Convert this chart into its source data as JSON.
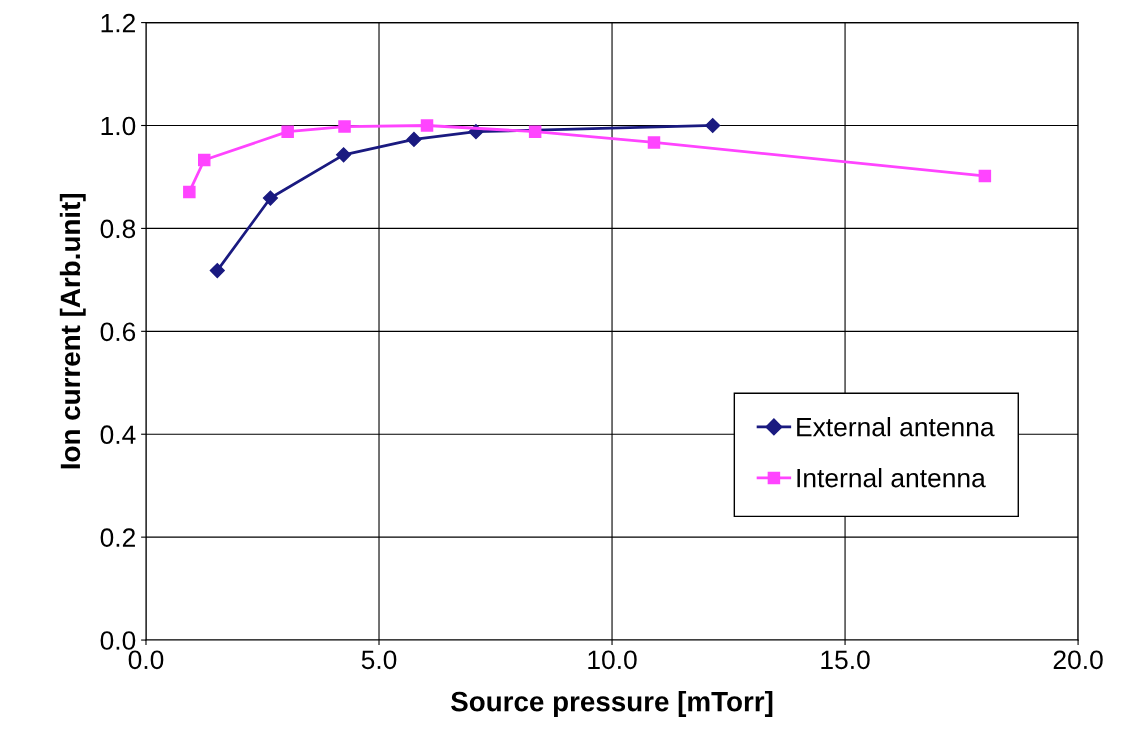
{
  "chart_data": {
    "type": "line",
    "xlabel": "Source pressure [mTorr]",
    "ylabel": "Ion current [Arb.unit]",
    "xlim": [
      0,
      20
    ],
    "xticks": [
      {
        "value": 0,
        "label": "0.0"
      },
      {
        "value": 5,
        "label": "5.0"
      },
      {
        "value": 10,
        "label": "10.0"
      },
      {
        "value": 15,
        "label": "15.0"
      },
      {
        "value": 20,
        "label": "20.0"
      }
    ],
    "ylim": [
      0,
      1.2
    ],
    "yticks": [
      {
        "value": 0,
        "label": "0.0"
      },
      {
        "value": 0.2,
        "label": "0.2"
      },
      {
        "value": 0.4,
        "label": "0.4"
      },
      {
        "value": 0.6,
        "label": "0.6"
      },
      {
        "value": 0.8,
        "label": "0.8"
      },
      {
        "value": 1.0,
        "label": "1.0"
      },
      {
        "value": 1.2,
        "label": "1.2"
      }
    ],
    "grid": true,
    "legend": "right",
    "series": [
      {
        "name": "External antenna",
        "color": "#1a1a80",
        "marker": "diamond",
        "x": [
          1.53,
          2.67,
          4.24,
          5.75,
          7.08,
          12.16
        ],
        "values": [
          0.718,
          0.859,
          0.943,
          0.973,
          0.988,
          1.0
        ]
      },
      {
        "name": "Internal antenna",
        "color": "#ff44ff",
        "marker": "square",
        "x": [
          0.93,
          1.25,
          3.04,
          4.26,
          6.03,
          8.35,
          10.9,
          18.0
        ],
        "values": [
          0.871,
          0.933,
          0.988,
          0.998,
          1.0,
          0.988,
          0.967,
          0.902
        ]
      }
    ]
  }
}
